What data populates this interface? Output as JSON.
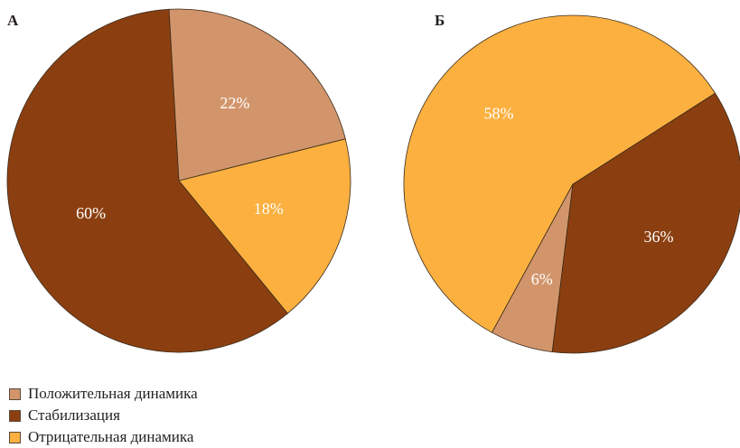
{
  "chart_data": [
    {
      "type": "pie",
      "panel_label": "А",
      "slices": [
        {
          "category": "Стабилизация",
          "value": 60,
          "label": "60%"
        },
        {
          "category": "Отрицательная динамика",
          "value": 18,
          "label": "18%"
        },
        {
          "category": "Положительная динамика",
          "value": 22,
          "label": "22%"
        }
      ]
    },
    {
      "type": "pie",
      "panel_label": "Б",
      "slices": [
        {
          "category": "Отрицательная динамика",
          "value": 58,
          "label": "58%"
        },
        {
          "category": "Положительная динамика",
          "value": 6,
          "label": "6%"
        },
        {
          "category": "Стабилизация",
          "value": 36,
          "label": "36%"
        }
      ]
    }
  ],
  "legend": [
    {
      "category": "Положительная динамика",
      "label": "Положительная динамика",
      "color": "#d2956b"
    },
    {
      "category": "Стабилизация",
      "label": "Стабилизация",
      "color": "#8b3f10"
    },
    {
      "category": "Отрицательная динамика",
      "label": "Отрицательная динамика",
      "color": "#fbb040"
    }
  ],
  "colors": {
    "Положительная динамика": "#d2956b",
    "Стабилизация": "#8b3f10",
    "Отрицательная динамика": "#fbb040"
  }
}
